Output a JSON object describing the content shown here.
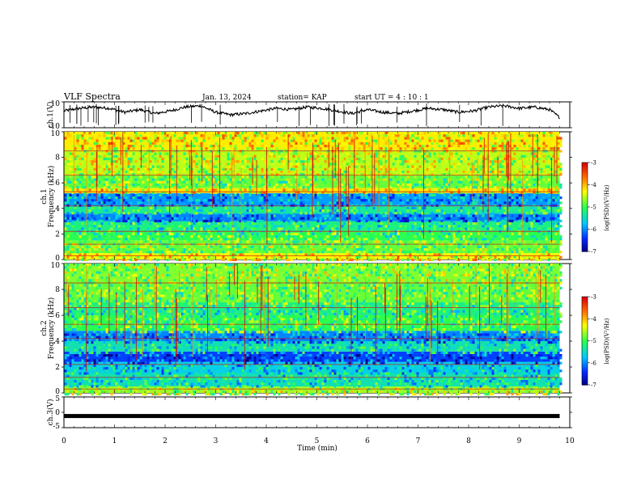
{
  "header": {
    "title": "VLF Spectra",
    "date": "Jan. 13, 2024",
    "station": "station= KAP",
    "start": "start  UT  =   4  : 10 : 1"
  },
  "chart_data": [
    {
      "type": "line",
      "id": "ch1",
      "ylabel": "ch.1(V)",
      "ylim": [
        -10,
        10
      ],
      "yticks": [
        "10",
        "-10"
      ],
      "xlim": [
        0,
        10
      ],
      "data_extent_min": 9.8,
      "approx_trend": {
        "x": [
          0,
          0.3,
          0.6,
          0.9,
          1.2,
          1.5,
          1.8,
          2.1,
          2.4,
          2.7,
          3.0,
          3.3,
          3.6,
          3.9,
          4.2,
          4.5,
          4.8,
          5.1,
          5.4,
          5.7,
          6.0,
          6.3,
          6.6,
          6.9,
          7.2,
          7.5,
          7.8,
          8.1,
          8.4,
          8.7,
          9.0,
          9.3,
          9.6,
          9.8
        ],
        "y": [
          3,
          5,
          6,
          5,
          2,
          4,
          1,
          3,
          6,
          7,
          2,
          0,
          1,
          3,
          5,
          4,
          6,
          5,
          3,
          1,
          4,
          2,
          1,
          3,
          5,
          4,
          2,
          3,
          6,
          7,
          5,
          6,
          4,
          -2
        ]
      }
    },
    {
      "type": "heatmap",
      "id": "ch1_spectrogram",
      "ylabel": "ch.1 Frequency (kHz)",
      "ylabel_ch": "ch.1",
      "ylabel_freq": "Frequency (kHz)",
      "ylim": [
        0,
        10
      ],
      "yticks": [
        "0",
        "2",
        "4",
        "6",
        "8",
        "10"
      ],
      "xlim": [
        0,
        10
      ],
      "data_extent_min": 9.8,
      "colorbar": {
        "label": "log(PSD)(V²/Hz)",
        "range": [
          -7,
          -3
        ],
        "ticks": [
          "-3",
          "-4",
          "-5",
          "-6",
          "-7"
        ]
      },
      "bands_kHz": [
        {
          "from": 0,
          "to": 0.5,
          "level": -4.3
        },
        {
          "from": 0.5,
          "to": 1.5,
          "level": -4.8
        },
        {
          "from": 1.5,
          "to": 2.2,
          "level": -5.0
        },
        {
          "from": 2.2,
          "to": 3.0,
          "level": -5.2
        },
        {
          "from": 3.0,
          "to": 3.6,
          "level": -6.0
        },
        {
          "from": 3.6,
          "to": 4.2,
          "level": -5.3
        },
        {
          "from": 4.2,
          "to": 5.2,
          "level": -5.9
        },
        {
          "from": 5.2,
          "to": 5.6,
          "level": -4.2
        },
        {
          "from": 5.6,
          "to": 6.6,
          "level": -4.8
        },
        {
          "from": 6.6,
          "to": 8.6,
          "level": -4.5
        },
        {
          "from": 8.6,
          "to": 10,
          "level": -4.2
        }
      ]
    },
    {
      "type": "heatmap",
      "id": "ch2_spectrogram",
      "ylabel": "ch.2 Frequency (kHz)",
      "ylabel_ch": "ch.2",
      "ylabel_freq": "Frequency (kHz)",
      "ylim": [
        0,
        10
      ],
      "yticks": [
        "0",
        "2",
        "4",
        "6",
        "8",
        "10"
      ],
      "xlim": [
        0,
        10
      ],
      "data_extent_min": 9.8,
      "colorbar": {
        "label": "log(PSD)(V²/Hz)",
        "range": [
          -7,
          -3
        ],
        "ticks": [
          "-3",
          "-4",
          "-5",
          "-6",
          "-7"
        ]
      },
      "bands_kHz": [
        {
          "from": 0,
          "to": 0.5,
          "level": -4.6
        },
        {
          "from": 0.5,
          "to": 1.5,
          "level": -5.4
        },
        {
          "from": 1.5,
          "to": 2.4,
          "level": -5.6
        },
        {
          "from": 2.4,
          "to": 3.2,
          "level": -6.3
        },
        {
          "from": 3.2,
          "to": 4.0,
          "level": -5.4
        },
        {
          "from": 4.0,
          "to": 4.8,
          "level": -6.0
        },
        {
          "from": 4.8,
          "to": 6.0,
          "level": -5.0
        },
        {
          "from": 6.0,
          "to": 7.0,
          "level": -5.2
        },
        {
          "from": 7.0,
          "to": 8.5,
          "level": -4.8
        },
        {
          "from": 8.5,
          "to": 10,
          "level": -4.7
        }
      ]
    },
    {
      "type": "line",
      "id": "ch3",
      "ylabel": "ch.3(V)",
      "ylim": [
        -5,
        5
      ],
      "yticks": [
        "5",
        "0",
        "-5"
      ],
      "xlim": [
        0,
        10
      ],
      "data_extent_min": 9.8,
      "approx_level": -1.2,
      "xlabel": "Time  (min)",
      "xticks": [
        "0",
        "1",
        "2",
        "3",
        "4",
        "5",
        "6",
        "7",
        "8",
        "9",
        "10"
      ]
    }
  ]
}
